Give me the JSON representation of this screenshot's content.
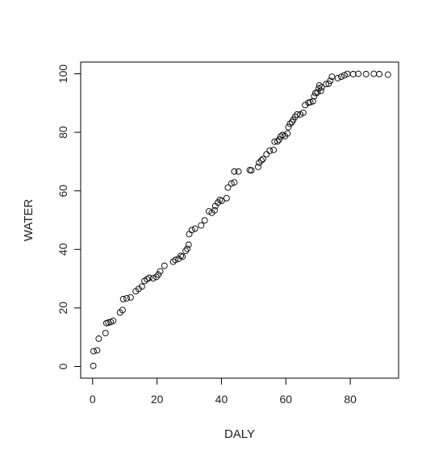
{
  "chart_data": {
    "type": "scatter",
    "title": "",
    "xlabel": "DALY",
    "ylabel": "WATER",
    "xlim": [
      -3.7,
      95
    ],
    "ylim": [
      -4.0,
      104.0
    ],
    "xticks": [
      0,
      20,
      40,
      60,
      80
    ],
    "yticks": [
      0,
      20,
      40,
      60,
      80,
      100
    ],
    "grid": false,
    "legend": "none",
    "marker": "open-circle",
    "color": "#000000",
    "points": [
      [
        0.2,
        0.2
      ],
      [
        0.3,
        5.2
      ],
      [
        1.4,
        5.5
      ],
      [
        1.9,
        9.5
      ],
      [
        4.0,
        11.4
      ],
      [
        4.3,
        14.8
      ],
      [
        4.9,
        15.0
      ],
      [
        5.6,
        15.2
      ],
      [
        6.4,
        15.6
      ],
      [
        8.5,
        18.4
      ],
      [
        9.3,
        19.3
      ],
      [
        9.5,
        23.0
      ],
      [
        10.6,
        23.3
      ],
      [
        11.8,
        23.6
      ],
      [
        13.4,
        25.7
      ],
      [
        14.3,
        26.5
      ],
      [
        15.3,
        27.3
      ],
      [
        16.1,
        29.2
      ],
      [
        16.9,
        29.8
      ],
      [
        17.6,
        30.3
      ],
      [
        18.8,
        30.1
      ],
      [
        19.8,
        30.6
      ],
      [
        20.4,
        31.4
      ],
      [
        21.0,
        32.5
      ],
      [
        22.3,
        34.4
      ],
      [
        25.0,
        35.8
      ],
      [
        25.7,
        36.4
      ],
      [
        26.7,
        36.8
      ],
      [
        27.4,
        37.8
      ],
      [
        27.9,
        37.5
      ],
      [
        28.9,
        39.5
      ],
      [
        29.4,
        40.2
      ],
      [
        29.8,
        41.6
      ],
      [
        30.0,
        45.2
      ],
      [
        30.8,
        46.6
      ],
      [
        31.8,
        47.1
      ],
      [
        33.7,
        48.2
      ],
      [
        34.8,
        49.9
      ],
      [
        36.1,
        53.0
      ],
      [
        37.0,
        52.5
      ],
      [
        37.9,
        53.4
      ],
      [
        38.1,
        54.8
      ],
      [
        38.9,
        56.0
      ],
      [
        39.5,
        56.9
      ],
      [
        40.1,
        56.6
      ],
      [
        41.6,
        57.5
      ],
      [
        42.0,
        61.1
      ],
      [
        43.1,
        62.5
      ],
      [
        44.0,
        62.9
      ],
      [
        44.0,
        66.6
      ],
      [
        45.3,
        66.6
      ],
      [
        48.8,
        67.1
      ],
      [
        49.3,
        67.0
      ],
      [
        51.4,
        68.2
      ],
      [
        51.7,
        69.6
      ],
      [
        52.4,
        70.4
      ],
      [
        52.9,
        70.9
      ],
      [
        54.0,
        72.5
      ],
      [
        55.0,
        73.7
      ],
      [
        56.2,
        74.0
      ],
      [
        56.5,
        76.8
      ],
      [
        57.4,
        76.9
      ],
      [
        57.9,
        77.5
      ],
      [
        58.4,
        78.6
      ],
      [
        59.0,
        79.1
      ],
      [
        59.7,
        78.7
      ],
      [
        60.5,
        79.6
      ],
      [
        60.8,
        81.8
      ],
      [
        61.3,
        82.9
      ],
      [
        61.9,
        83.5
      ],
      [
        62.3,
        84.3
      ],
      [
        62.9,
        85.3
      ],
      [
        63.5,
        86.1
      ],
      [
        64.5,
        86.1
      ],
      [
        65.4,
        86.7
      ],
      [
        66.0,
        89.3
      ],
      [
        67.0,
        90.1
      ],
      [
        67.6,
        90.3
      ],
      [
        68.4,
        90.6
      ],
      [
        68.8,
        92.3
      ],
      [
        69.2,
        93.4
      ],
      [
        69.8,
        93.6
      ],
      [
        70.2,
        95.0
      ],
      [
        70.4,
        96.0
      ],
      [
        70.9,
        94.2
      ],
      [
        71.1,
        95.4
      ],
      [
        72.5,
        96.5
      ],
      [
        73.3,
        96.6
      ],
      [
        73.8,
        97.6
      ],
      [
        74.3,
        99.0
      ],
      [
        76.1,
        98.5
      ],
      [
        77.2,
        99.0
      ],
      [
        78.2,
        99.5
      ],
      [
        79.1,
        100.0
      ],
      [
        80.9,
        99.9
      ],
      [
        82.5,
        100.0
      ],
      [
        84.9,
        99.9
      ],
      [
        87.3,
        100.0
      ],
      [
        89.0,
        99.9
      ],
      [
        91.7,
        99.7
      ]
    ]
  }
}
